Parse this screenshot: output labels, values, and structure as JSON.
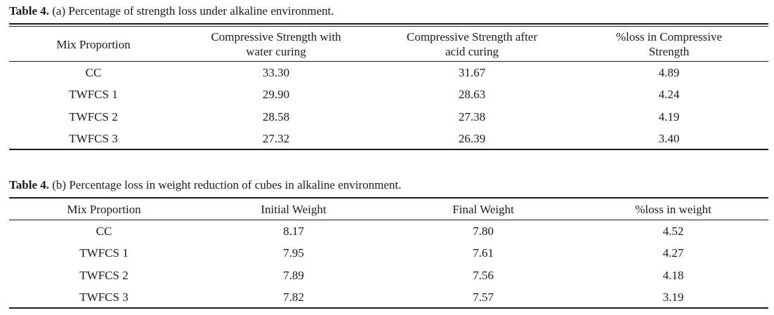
{
  "table_a": {
    "caption_label": "Table 4.",
    "caption_text": " (a) Percentage of strength loss under alkaline environment.",
    "headers": [
      "Mix Proportion",
      "Compressive Strength with water curing",
      "Compressive Strength after acid curing",
      "%loss in Compressive Strength"
    ],
    "header_lines": [
      [
        "Mix Proportion"
      ],
      [
        "Compressive Strength with",
        "water curing"
      ],
      [
        "Compressive Strength after",
        "acid curing"
      ],
      [
        "%loss in Compressive",
        "Strength"
      ]
    ],
    "rows": [
      [
        "CC",
        "33.30",
        "31.67",
        "4.89"
      ],
      [
        "TWFCS 1",
        "29.90",
        "28.63",
        "4.24"
      ],
      [
        "TWFCS 2",
        "28.58",
        "27.38",
        "4.19"
      ],
      [
        "TWFCS 3",
        "27.32",
        "26.39",
        "3.40"
      ]
    ]
  },
  "table_b": {
    "caption_label": "Table 4.",
    "caption_text": " (b) Percentage loss in weight reduction of cubes in alkaline environment.",
    "headers": [
      "Mix Proportion",
      "Initial Weight",
      "Final Weight",
      "%loss in weight"
    ],
    "rows": [
      [
        "CC",
        "8.17",
        "7.80",
        "4.52"
      ],
      [
        "TWFCS 1",
        "7.95",
        "7.61",
        "4.27"
      ],
      [
        "TWFCS 2",
        "7.89",
        "7.56",
        "4.18"
      ],
      [
        "TWFCS 3",
        "7.82",
        "7.57",
        "3.19"
      ]
    ]
  }
}
